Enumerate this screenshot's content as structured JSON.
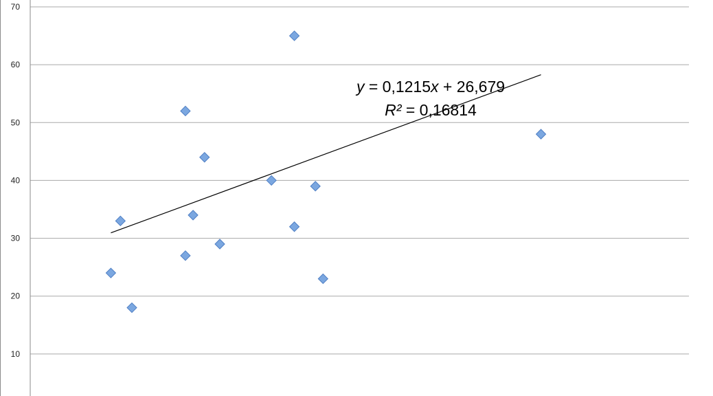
{
  "chart_data": {
    "type": "scatter",
    "title": "",
    "xlabel": "",
    "ylabel": "",
    "ylim": [
      0,
      70
    ],
    "xlim": [
      0,
      350
    ],
    "y_ticks": [
      "10",
      "20",
      "30",
      "40",
      "50",
      "60",
      "70"
    ],
    "grid": true,
    "marker_color": "#7ba7e0",
    "marker_shape": "diamond",
    "series": [
      {
        "points": [
          {
            "x": 35,
            "y": 24
          },
          {
            "x": 40,
            "y": 33
          },
          {
            "x": 46,
            "y": 18
          },
          {
            "x": 74,
            "y": 52
          },
          {
            "x": 74,
            "y": 27
          },
          {
            "x": 78,
            "y": 34
          },
          {
            "x": 84,
            "y": 44
          },
          {
            "x": 92,
            "y": 29
          },
          {
            "x": 119,
            "y": 40
          },
          {
            "x": 131,
            "y": 65
          },
          {
            "x": 131,
            "y": 32
          },
          {
            "x": 142,
            "y": 39
          },
          {
            "x": 146,
            "y": 23
          },
          {
            "x": 260,
            "y": 48
          }
        ]
      }
    ],
    "trendline": {
      "slope": 0.1215,
      "intercept": 26.679,
      "x_range": [
        35,
        260
      ],
      "color": "#000000",
      "equation_y_prefix": "y",
      "equation_y_rest": " = 0,1215",
      "equation_x_var": "x",
      "equation_y_suffix": " + 26,679",
      "equation_r2_var": "R²",
      "equation_r2_rest": " = 0,16814"
    }
  }
}
